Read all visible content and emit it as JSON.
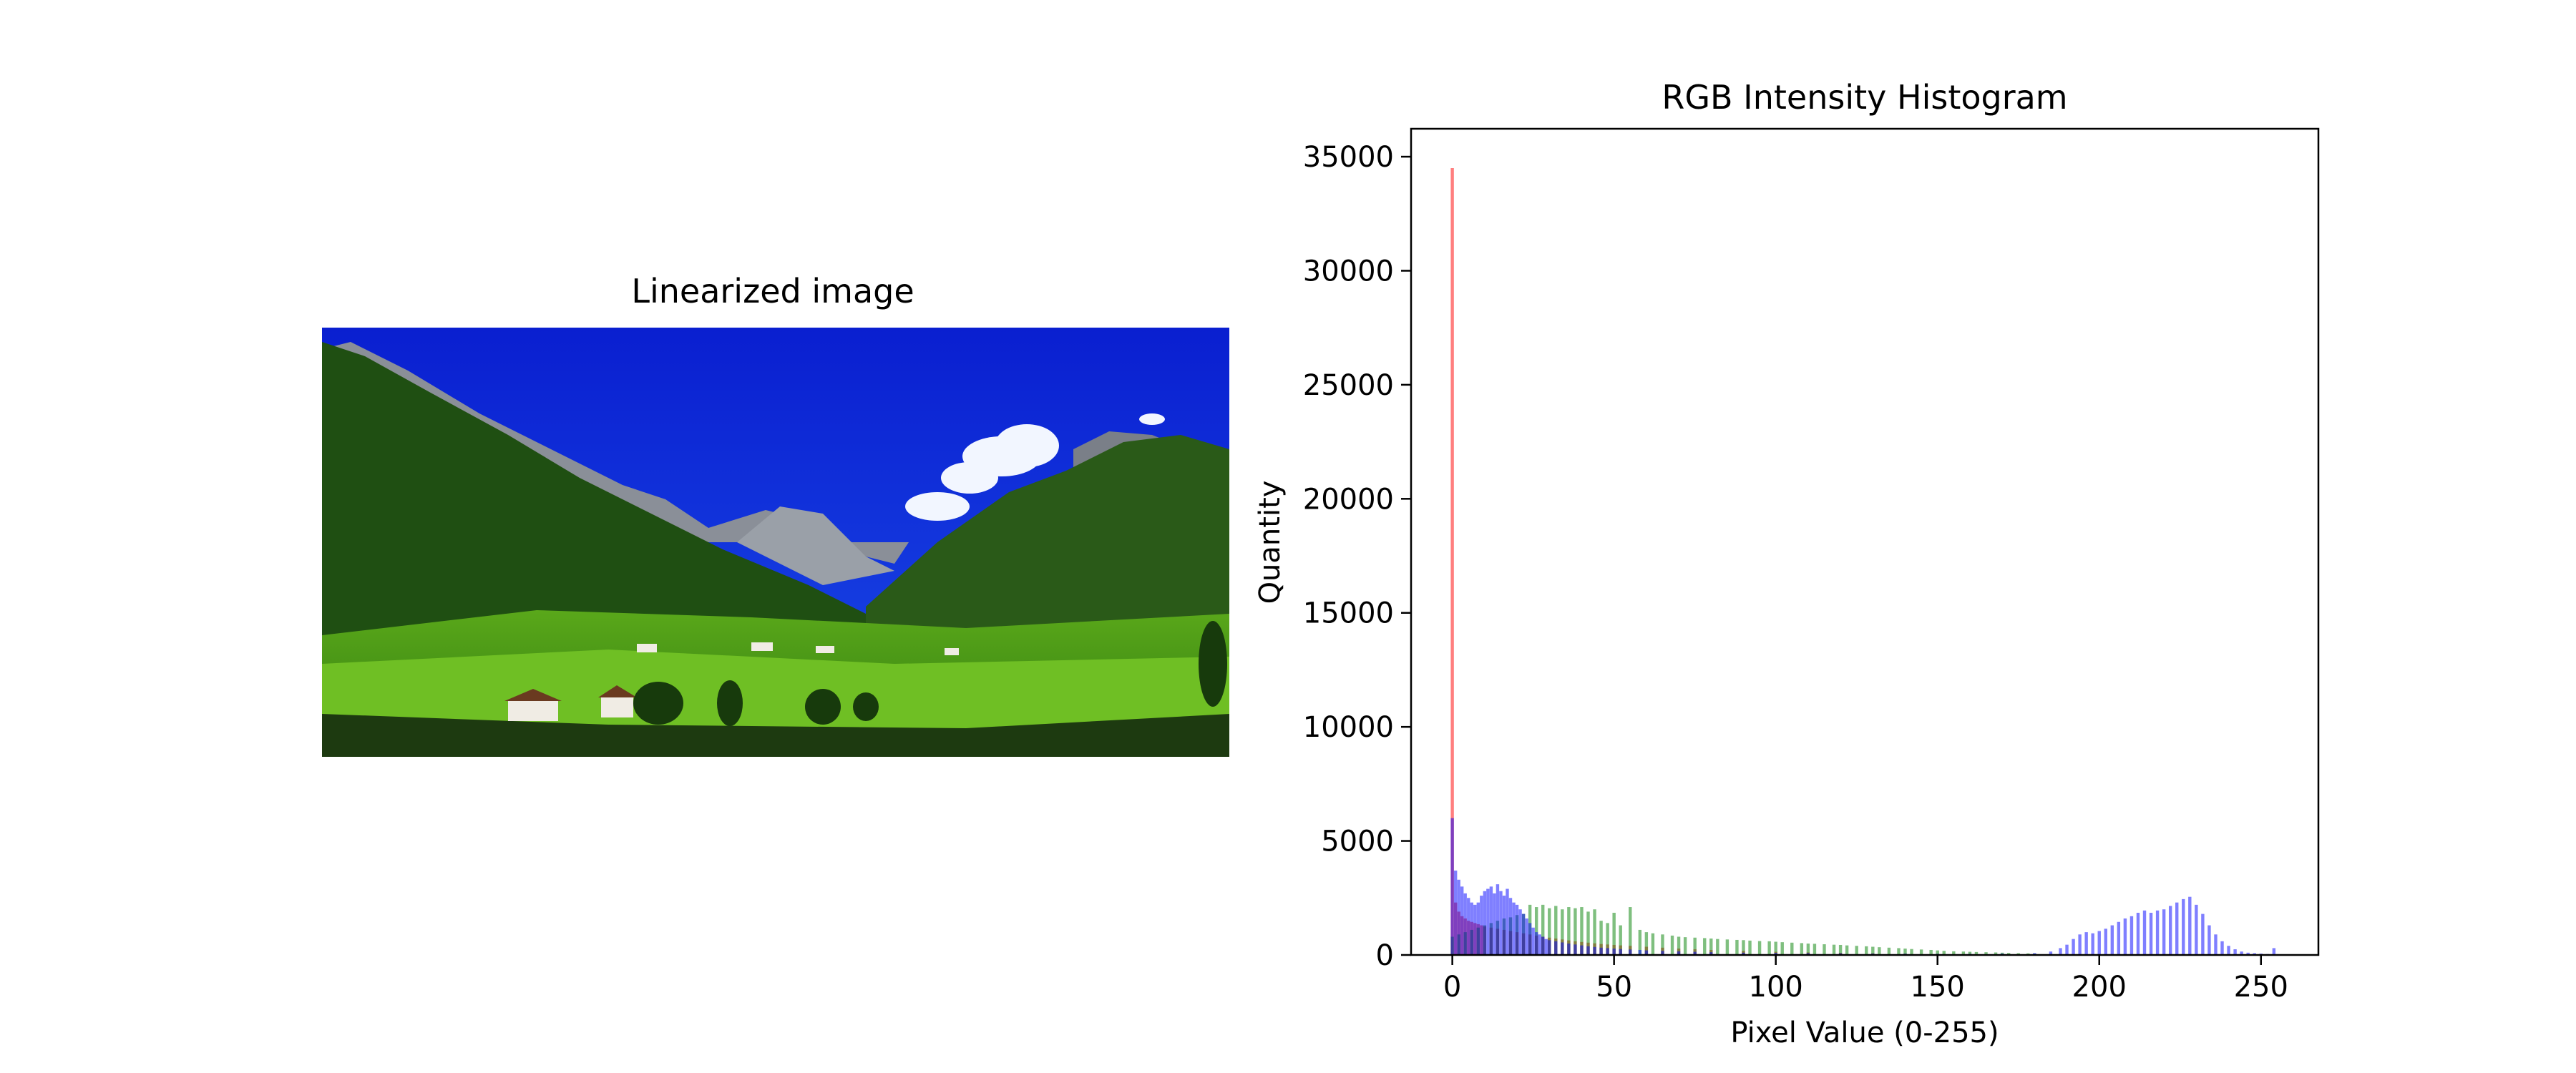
{
  "left_panel": {
    "title": "Linearized image"
  },
  "chart_data": {
    "type": "bar",
    "title": "RGB Intensity Histogram",
    "xlabel": "Pixel Value (0-255)",
    "ylabel": "Quantity",
    "xlim": [
      -12.75,
      267.75
    ],
    "ylim": [
      0,
      36225
    ],
    "xticks": [
      0,
      50,
      100,
      150,
      200,
      250
    ],
    "yticks": [
      0,
      5000,
      10000,
      15000,
      20000,
      25000,
      30000,
      35000
    ],
    "grid": false,
    "colors": {
      "red": "#ff0000",
      "green": "#008000",
      "blue": "#0000ff"
    },
    "alpha": 0.5,
    "series": [
      {
        "name": "red",
        "values": [
          [
            0,
            34500
          ],
          [
            1,
            2300
          ],
          [
            2,
            1900
          ],
          [
            3,
            1700
          ],
          [
            4,
            1600
          ],
          [
            5,
            1500
          ],
          [
            6,
            1450
          ],
          [
            7,
            1400
          ],
          [
            8,
            1350
          ],
          [
            9,
            1300
          ],
          [
            10,
            1250
          ],
          [
            12,
            1200
          ],
          [
            14,
            1150
          ],
          [
            16,
            1100
          ],
          [
            18,
            1050
          ],
          [
            20,
            1000
          ],
          [
            22,
            950
          ],
          [
            24,
            900
          ],
          [
            26,
            850
          ],
          [
            28,
            800
          ],
          [
            30,
            760
          ],
          [
            32,
            720
          ],
          [
            34,
            680
          ],
          [
            36,
            640
          ],
          [
            38,
            600
          ],
          [
            40,
            570
          ],
          [
            42,
            540
          ],
          [
            44,
            510
          ],
          [
            46,
            480
          ],
          [
            48,
            460
          ],
          [
            50,
            440
          ],
          [
            52,
            420
          ],
          [
            55,
            400
          ],
          [
            60,
            360
          ],
          [
            65,
            320
          ],
          [
            70,
            280
          ],
          [
            75,
            250
          ],
          [
            80,
            220
          ],
          [
            90,
            180
          ],
          [
            100,
            140
          ],
          [
            110,
            110
          ],
          [
            120,
            90
          ],
          [
            130,
            70
          ],
          [
            140,
            55
          ],
          [
            150,
            45
          ],
          [
            160,
            35
          ],
          [
            170,
            25
          ],
          [
            180,
            20
          ],
          [
            190,
            15
          ],
          [
            200,
            10
          ],
          [
            220,
            6
          ],
          [
            240,
            4
          ],
          [
            254,
            2
          ]
        ]
      },
      {
        "name": "green",
        "values": [
          [
            0,
            800
          ],
          [
            2,
            900
          ],
          [
            4,
            1000
          ],
          [
            6,
            1100
          ],
          [
            8,
            1200
          ],
          [
            10,
            1300
          ],
          [
            12,
            1400
          ],
          [
            14,
            1500
          ],
          [
            16,
            1600
          ],
          [
            18,
            1650
          ],
          [
            20,
            1750
          ],
          [
            22,
            1800
          ],
          [
            24,
            2200
          ],
          [
            26,
            2100
          ],
          [
            28,
            2200
          ],
          [
            30,
            2050
          ],
          [
            32,
            2150
          ],
          [
            34,
            2000
          ],
          [
            36,
            2100
          ],
          [
            38,
            2050
          ],
          [
            40,
            2100
          ],
          [
            42,
            1900
          ],
          [
            44,
            2000
          ],
          [
            46,
            1500
          ],
          [
            48,
            1400
          ],
          [
            50,
            1850
          ],
          [
            52,
            1300
          ],
          [
            55,
            2100
          ],
          [
            58,
            1100
          ],
          [
            60,
            1000
          ],
          [
            62,
            950
          ],
          [
            65,
            900
          ],
          [
            68,
            850
          ],
          [
            70,
            800
          ],
          [
            72,
            780
          ],
          [
            75,
            760
          ],
          [
            78,
            740
          ],
          [
            80,
            720
          ],
          [
            82,
            700
          ],
          [
            85,
            680
          ],
          [
            88,
            660
          ],
          [
            90,
            650
          ],
          [
            92,
            630
          ],
          [
            95,
            610
          ],
          [
            98,
            600
          ],
          [
            100,
            580
          ],
          [
            102,
            560
          ],
          [
            105,
            540
          ],
          [
            108,
            520
          ],
          [
            110,
            500
          ],
          [
            112,
            490
          ],
          [
            115,
            470
          ],
          [
            118,
            450
          ],
          [
            120,
            440
          ],
          [
            122,
            420
          ],
          [
            125,
            400
          ],
          [
            128,
            380
          ],
          [
            130,
            360
          ],
          [
            132,
            340
          ],
          [
            135,
            320
          ],
          [
            138,
            300
          ],
          [
            140,
            280
          ],
          [
            142,
            260
          ],
          [
            145,
            240
          ],
          [
            148,
            220
          ],
          [
            150,
            200
          ],
          [
            152,
            180
          ],
          [
            155,
            160
          ],
          [
            158,
            150
          ],
          [
            160,
            140
          ],
          [
            162,
            130
          ],
          [
            165,
            120
          ],
          [
            168,
            110
          ],
          [
            170,
            100
          ],
          [
            172,
            90
          ],
          [
            175,
            80
          ],
          [
            178,
            70
          ],
          [
            180,
            60
          ],
          [
            185,
            50
          ],
          [
            190,
            40
          ],
          [
            200,
            30
          ],
          [
            210,
            20
          ],
          [
            220,
            15
          ],
          [
            230,
            10
          ],
          [
            240,
            6
          ],
          [
            250,
            3
          ]
        ]
      },
      {
        "name": "blue",
        "values": [
          [
            0,
            6000
          ],
          [
            1,
            3700
          ],
          [
            2,
            3300
          ],
          [
            3,
            3000
          ],
          [
            4,
            2700
          ],
          [
            5,
            2500
          ],
          [
            6,
            2300
          ],
          [
            7,
            2200
          ],
          [
            8,
            2300
          ],
          [
            9,
            2600
          ],
          [
            10,
            2800
          ],
          [
            11,
            2900
          ],
          [
            12,
            3000
          ],
          [
            13,
            2700
          ],
          [
            14,
            3100
          ],
          [
            15,
            2800
          ],
          [
            16,
            2600
          ],
          [
            17,
            2900
          ],
          [
            18,
            2500
          ],
          [
            19,
            2300
          ],
          [
            20,
            2200
          ],
          [
            21,
            2000
          ],
          [
            22,
            1800
          ],
          [
            23,
            1600
          ],
          [
            24,
            1400
          ],
          [
            25,
            1200
          ],
          [
            26,
            1000
          ],
          [
            27,
            900
          ],
          [
            28,
            800
          ],
          [
            29,
            700
          ],
          [
            30,
            650
          ],
          [
            32,
            600
          ],
          [
            34,
            550
          ],
          [
            36,
            500
          ],
          [
            38,
            460
          ],
          [
            40,
            420
          ],
          [
            42,
            380
          ],
          [
            44,
            350
          ],
          [
            46,
            320
          ],
          [
            48,
            300
          ],
          [
            50,
            280
          ],
          [
            52,
            260
          ],
          [
            55,
            240
          ],
          [
            58,
            220
          ],
          [
            60,
            200
          ],
          [
            65,
            180
          ],
          [
            70,
            160
          ],
          [
            75,
            140
          ],
          [
            80,
            120
          ],
          [
            90,
            100
          ],
          [
            100,
            90
          ],
          [
            110,
            80
          ],
          [
            120,
            70
          ],
          [
            130,
            60
          ],
          [
            140,
            55
          ],
          [
            150,
            50
          ],
          [
            160,
            50
          ],
          [
            170,
            60
          ],
          [
            180,
            80
          ],
          [
            185,
            150
          ],
          [
            188,
            300
          ],
          [
            190,
            450
          ],
          [
            192,
            700
          ],
          [
            194,
            900
          ],
          [
            196,
            1000
          ],
          [
            198,
            950
          ],
          [
            200,
            1050
          ],
          [
            202,
            1150
          ],
          [
            204,
            1300
          ],
          [
            206,
            1450
          ],
          [
            208,
            1600
          ],
          [
            210,
            1700
          ],
          [
            212,
            1850
          ],
          [
            214,
            1950
          ],
          [
            216,
            1850
          ],
          [
            218,
            1950
          ],
          [
            220,
            2000
          ],
          [
            222,
            2150
          ],
          [
            224,
            2300
          ],
          [
            226,
            2450
          ],
          [
            228,
            2550
          ],
          [
            230,
            2200
          ],
          [
            232,
            1800
          ],
          [
            234,
            1300
          ],
          [
            236,
            900
          ],
          [
            238,
            600
          ],
          [
            240,
            400
          ],
          [
            242,
            250
          ],
          [
            244,
            150
          ],
          [
            246,
            100
          ],
          [
            248,
            80
          ],
          [
            250,
            60
          ],
          [
            252,
            40
          ],
          [
            254,
            300
          ]
        ]
      }
    ]
  }
}
